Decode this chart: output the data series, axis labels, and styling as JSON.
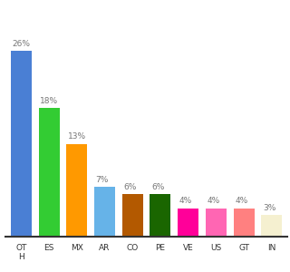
{
  "categories": [
    "OT\nH",
    "ES",
    "MX",
    "AR",
    "CO",
    "PE",
    "VE",
    "US",
    "GT",
    "IN"
  ],
  "values": [
    26,
    18,
    13,
    7,
    6,
    6,
    4,
    4,
    4,
    3
  ],
  "bar_colors": [
    "#4a7fd4",
    "#33cc33",
    "#ff9900",
    "#66b3e8",
    "#b35900",
    "#1a6600",
    "#ff0099",
    "#ff66b3",
    "#ff8080",
    "#f5f0d0"
  ],
  "ylim": [
    0,
    32
  ],
  "background_color": "#ffffff",
  "label_fontsize": 6.5,
  "tick_fontsize": 6.5,
  "bar_width": 0.75
}
